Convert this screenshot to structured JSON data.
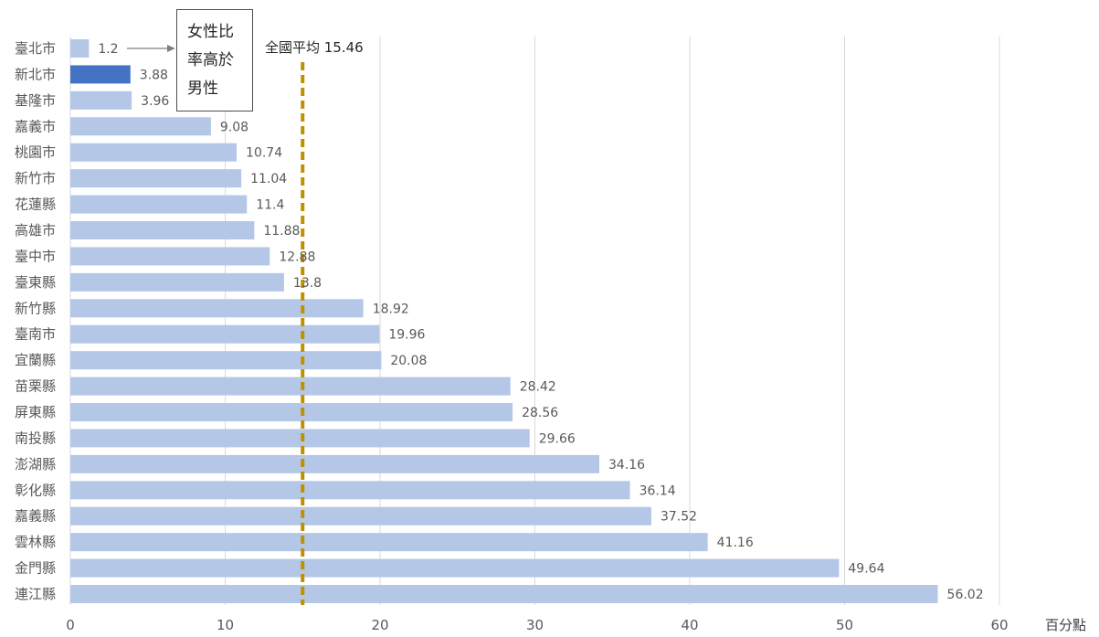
{
  "chart_data": {
    "type": "bar",
    "orientation": "horizontal",
    "categories": [
      "臺北市",
      "新北市",
      "基隆市",
      "嘉義市",
      "桃園市",
      "新竹市",
      "花蓮縣",
      "高雄市",
      "臺中市",
      "臺東縣",
      "新竹縣",
      "臺南市",
      "宜蘭縣",
      "苗栗縣",
      "屏東縣",
      "南投縣",
      "澎湖縣",
      "彰化縣",
      "嘉義縣",
      "雲林縣",
      "金門縣",
      "連江縣"
    ],
    "values": [
      1.2,
      3.88,
      3.96,
      9.08,
      10.74,
      11.04,
      11.4,
      11.88,
      12.88,
      13.8,
      18.92,
      19.96,
      20.08,
      28.42,
      28.56,
      29.66,
      34.16,
      36.14,
      37.52,
      41.16,
      49.64,
      56.02
    ],
    "value_labels": [
      "1.2",
      "3.88",
      "3.96",
      "9.08",
      "10.74",
      "11.04",
      "11.4",
      "11.88",
      "12.88",
      "13.8",
      "18.92",
      "19.96",
      "20.08",
      "28.42",
      "28.56",
      "29.66",
      "34.16",
      "36.14",
      "37.52",
      "41.16",
      "49.64",
      "56.02"
    ],
    "highlight_category": "新北市",
    "xlim": [
      0,
      60
    ],
    "x_ticks": [
      0,
      10,
      20,
      30,
      40,
      50,
      60
    ],
    "x_unit_label": "百分點",
    "grid": true,
    "reference_line": {
      "label": "全國平均 15.46",
      "value": 15
    },
    "annotation": {
      "text": "女性比率高於男性",
      "target_category": "臺北市"
    },
    "colors": {
      "bar": "#b4c7e7",
      "highlight": "#4472c4",
      "reference_line": "#bf9000",
      "grid": "#d9d9d9",
      "text": "#595959"
    }
  }
}
